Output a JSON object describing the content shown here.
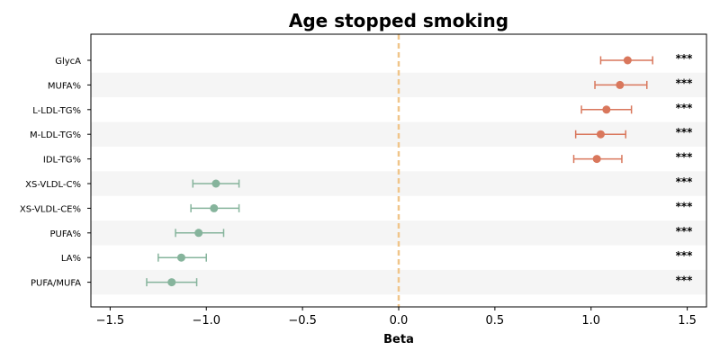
{
  "chart_data": {
    "type": "scatter",
    "subtype": "forest-plot",
    "title": "Age stopped smoking",
    "xlabel": "Beta",
    "ylabel": "",
    "xlim": [
      -1.6,
      1.6
    ],
    "xticks": [
      -1.5,
      -1.0,
      -0.5,
      0.0,
      0.5,
      1.0,
      1.5
    ],
    "xtick_labels": [
      "−1.5",
      "−1.0",
      "−0.5",
      "0.0",
      "0.5",
      "1.0",
      "1.5"
    ],
    "reference_line": 0.0,
    "row_shading": "alternating",
    "colors": {
      "positive": "#d9775c",
      "negative": "#86b49c",
      "reference_line": "#f0c58a",
      "row_band": "#f5f5f5"
    },
    "rows": [
      {
        "label": "GlycA",
        "beta": 1.19,
        "ci_low": 1.05,
        "ci_high": 1.32,
        "sig": "***"
      },
      {
        "label": "MUFA%",
        "beta": 1.15,
        "ci_low": 1.02,
        "ci_high": 1.29,
        "sig": "***"
      },
      {
        "label": "L-LDL-TG%",
        "beta": 1.08,
        "ci_low": 0.95,
        "ci_high": 1.21,
        "sig": "***"
      },
      {
        "label": "M-LDL-TG%",
        "beta": 1.05,
        "ci_low": 0.92,
        "ci_high": 1.18,
        "sig": "***"
      },
      {
        "label": "IDL-TG%",
        "beta": 1.03,
        "ci_low": 0.91,
        "ci_high": 1.16,
        "sig": "***"
      },
      {
        "label": "XS-VLDL-C%",
        "beta": -0.95,
        "ci_low": -1.07,
        "ci_high": -0.83,
        "sig": "***"
      },
      {
        "label": "XS-VLDL-CE%",
        "beta": -0.96,
        "ci_low": -1.08,
        "ci_high": -0.83,
        "sig": "***"
      },
      {
        "label": "PUFA%",
        "beta": -1.04,
        "ci_low": -1.16,
        "ci_high": -0.91,
        "sig": "***"
      },
      {
        "label": "LA%",
        "beta": -1.13,
        "ci_low": -1.25,
        "ci_high": -1.0,
        "sig": "***"
      },
      {
        "label": "PUFA/MUFA",
        "beta": -1.18,
        "ci_low": -1.31,
        "ci_high": -1.05,
        "sig": "***"
      }
    ]
  }
}
